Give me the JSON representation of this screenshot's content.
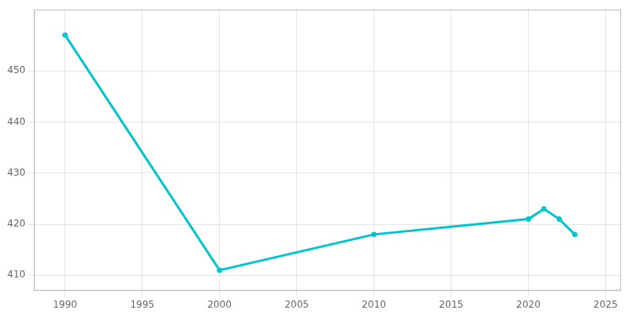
{
  "chart_data": {
    "type": "line",
    "x": [
      1990,
      2000,
      2010,
      2020,
      2021,
      2022,
      2023
    ],
    "values": [
      457,
      411,
      418,
      421,
      423,
      421,
      418
    ],
    "color": "#00C5CD",
    "marker": "circle",
    "xlim": [
      1988,
      2026
    ],
    "xticks": [
      1990,
      1995,
      2000,
      2005,
      2010,
      2015,
      2020,
      2025
    ],
    "ylim": [
      407,
      462
    ],
    "yticks": [
      410,
      420,
      430,
      440,
      450
    ],
    "grid": true
  }
}
